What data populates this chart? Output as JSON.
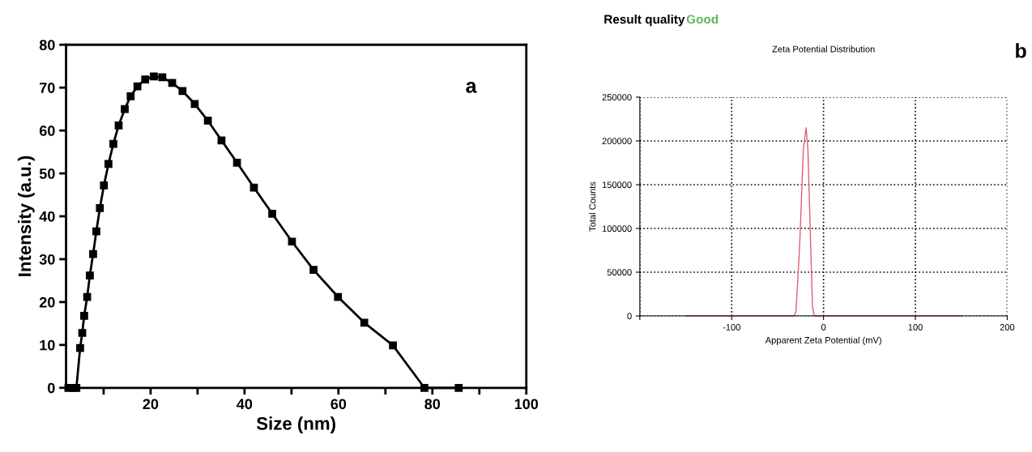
{
  "chart_data": [
    {
      "type": "line",
      "xlabel": "Size (nm)",
      "ylabel": "Intensity (a.u.)",
      "annotations": [
        "a"
      ],
      "marker": "square",
      "line_style": "solid",
      "grid": false,
      "legend": false,
      "xlim": [
        2,
        100
      ],
      "ylim": [
        0,
        80
      ],
      "xticks": [
        {
          "value": 10,
          "label": null
        },
        20,
        {
          "value": 30,
          "label": null
        },
        40,
        {
          "value": 50,
          "label": null
        },
        60,
        {
          "value": 70,
          "label": null
        },
        80,
        {
          "value": 90,
          "label": null
        },
        100
      ],
      "yticks": [
        0,
        10,
        20,
        30,
        40,
        50,
        60,
        70,
        80
      ],
      "series": [
        {
          "color": "#000000",
          "x": [
            2.5,
            3.5,
            4.2,
            5.0,
            5.45,
            5.86,
            6.5,
            7.07,
            7.76,
            8.45,
            9.2,
            10.06,
            11.03,
            12.07,
            13.2,
            14.5,
            15.75,
            17.2,
            18.85,
            20.7,
            22.5,
            24.6,
            26.8,
            29.4,
            32.2,
            35.1,
            38.4,
            42.0,
            45.9,
            50.1,
            54.7,
            59.9,
            65.5,
            71.6,
            78.3,
            85.6
          ],
          "values": [
            0,
            0,
            0,
            9.3,
            12.8,
            16.8,
            21.2,
            26.2,
            31.2,
            36.5,
            41.9,
            47.2,
            52.2,
            56.9,
            61.2,
            65.0,
            68.0,
            70.3,
            71.9,
            72.6,
            72.4,
            71.1,
            69.2,
            66.2,
            62.3,
            57.7,
            52.5,
            46.7,
            40.6,
            34.1,
            27.5,
            21.2,
            15.2,
            9.9,
            0,
            0
          ]
        }
      ]
    },
    {
      "type": "line",
      "title": "Zeta Potential Distribution",
      "xlabel": "Apparent Zeta Potential (mV)",
      "ylabel": "Total Counts",
      "annotations": [
        "Result quality",
        "Good",
        "b"
      ],
      "marker": "none",
      "line_style": "solid",
      "grid": true,
      "legend": false,
      "xlim": [
        -200,
        200
      ],
      "ylim": [
        0,
        250000
      ],
      "xticks": [
        {
          "value": -200,
          "label": null
        },
        -100,
        0,
        100,
        200
      ],
      "yticks": [
        0,
        50000,
        100000,
        150000,
        200000,
        250000
      ],
      "series": [
        {
          "color": "#e06070",
          "x": [
            -150,
            -32,
            -30,
            -26,
            -22,
            -19,
            -17,
            -14,
            -12,
            -10,
            150
          ],
          "values": [
            0,
            0,
            5000,
            80000,
            190000,
            215000,
            190000,
            80000,
            10000,
            0,
            0
          ]
        }
      ]
    }
  ]
}
